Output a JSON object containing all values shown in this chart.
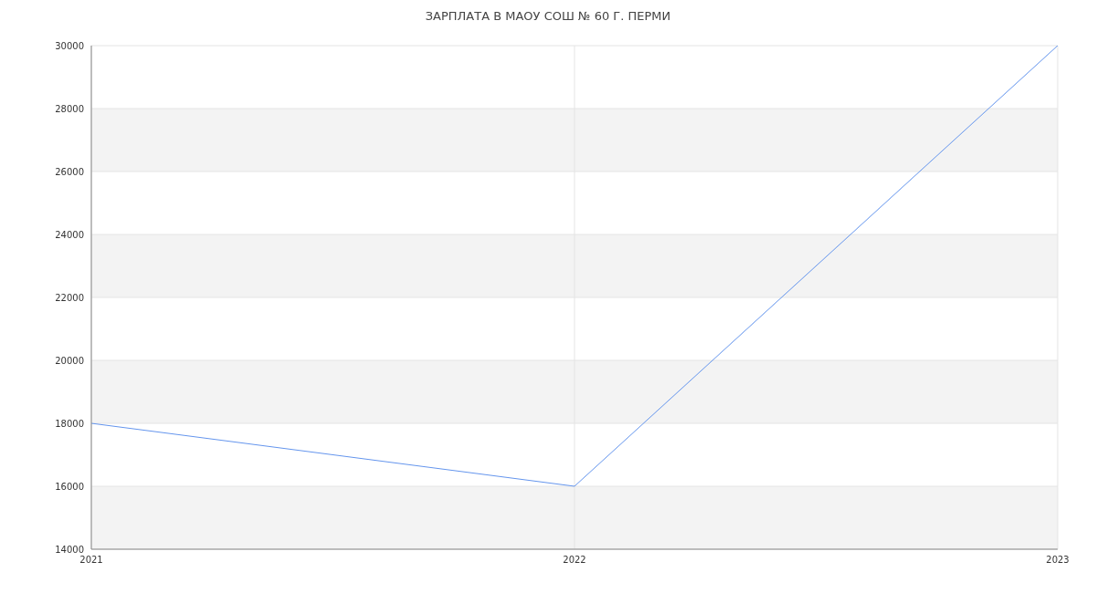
{
  "chart_data": {
    "type": "line",
    "title": "ЗАРПЛАТА В МАОУ СОШ № 60 Г. ПЕРМИ",
    "categories": [
      "2021",
      "2022",
      "2023"
    ],
    "series": [
      {
        "color": "#6495ed",
        "values": [
          18000,
          16000,
          30000
        ]
      }
    ],
    "ylim": [
      14000,
      30000
    ],
    "yticks": [
      14000,
      16000,
      18000,
      20000,
      22000,
      24000,
      26000,
      28000,
      30000
    ],
    "grid": true,
    "legend": false,
    "marker": "none",
    "line_style": "solid"
  }
}
